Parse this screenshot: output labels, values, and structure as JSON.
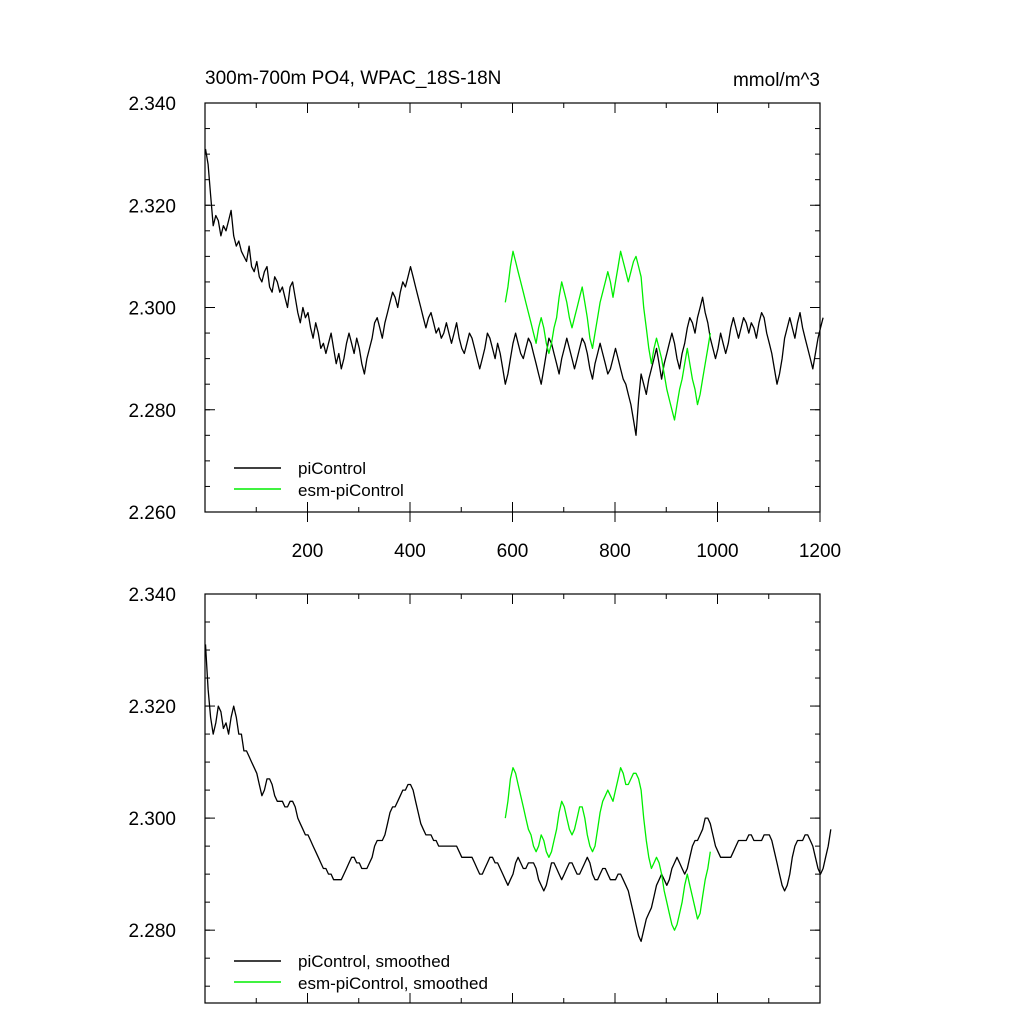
{
  "chart_data": [
    {
      "type": "line",
      "title": "300m-700m PO4, WPAC_18S-18N",
      "units": "mmol/m^3",
      "xlim": [
        0,
        1200
      ],
      "ylim": [
        2.26,
        2.34
      ],
      "x_ticks": [
        200,
        400,
        600,
        800,
        1000,
        1200
      ],
      "y_ticks": [
        2.26,
        2.28,
        2.3,
        2.32,
        2.34
      ],
      "y_tick_labels": [
        "2.260",
        "2.280",
        "2.300",
        "2.320",
        "2.340"
      ],
      "legend": "bottom-left",
      "series": [
        {
          "name": "piControl",
          "color": "#000000",
          "x_start": 1,
          "x_step": 5,
          "values": [
            2.331,
            2.328,
            2.322,
            2.316,
            2.318,
            2.317,
            2.314,
            2.316,
            2.315,
            2.317,
            2.319,
            2.314,
            2.312,
            2.313,
            2.311,
            2.31,
            2.309,
            2.312,
            2.308,
            2.307,
            2.309,
            2.306,
            2.305,
            2.307,
            2.308,
            2.304,
            2.303,
            2.306,
            2.305,
            2.303,
            2.304,
            2.302,
            2.3,
            2.304,
            2.305,
            2.302,
            2.299,
            2.297,
            2.3,
            2.298,
            2.299,
            2.296,
            2.294,
            2.297,
            2.295,
            2.292,
            2.293,
            2.291,
            2.293,
            2.295,
            2.292,
            2.289,
            2.291,
            2.288,
            2.29,
            2.293,
            2.295,
            2.293,
            2.291,
            2.294,
            2.292,
            2.289,
            2.287,
            2.29,
            2.292,
            2.294,
            2.297,
            2.298,
            2.296,
            2.294,
            2.297,
            2.299,
            2.301,
            2.303,
            2.302,
            2.3,
            2.303,
            2.305,
            2.304,
            2.306,
            2.308,
            2.306,
            2.304,
            2.302,
            2.3,
            2.298,
            2.296,
            2.298,
            2.299,
            2.297,
            2.295,
            2.296,
            2.294,
            2.295,
            2.297,
            2.295,
            2.293,
            2.295,
            2.297,
            2.294,
            2.292,
            2.291,
            2.293,
            2.295,
            2.294,
            2.292,
            2.29,
            2.288,
            2.29,
            2.292,
            2.295,
            2.294,
            2.292,
            2.29,
            2.293,
            2.291,
            2.288,
            2.285,
            2.287,
            2.29,
            2.293,
            2.295,
            2.293,
            2.291,
            2.29,
            2.292,
            2.294,
            2.293,
            2.291,
            2.289,
            2.287,
            2.285,
            2.288,
            2.291,
            2.294,
            2.293,
            2.291,
            2.289,
            2.287,
            2.29,
            2.292,
            2.294,
            2.292,
            2.29,
            2.288,
            2.29,
            2.292,
            2.294,
            2.293,
            2.291,
            2.288,
            2.286,
            2.289,
            2.291,
            2.293,
            2.291,
            2.289,
            2.287,
            2.288,
            2.29,
            2.292,
            2.29,
            2.288,
            2.286,
            2.285,
            2.283,
            2.281,
            2.278,
            2.275,
            2.282,
            2.287,
            2.285,
            2.283,
            2.286,
            2.288,
            2.29,
            2.292,
            2.289,
            2.286,
            2.289,
            2.291,
            2.293,
            2.295,
            2.293,
            2.29,
            2.288,
            2.291,
            2.293,
            2.296,
            2.298,
            2.297,
            2.295,
            2.298,
            2.3,
            2.302,
            2.299,
            2.297,
            2.294,
            2.292,
            2.29,
            2.292,
            2.295,
            2.293,
            2.291,
            2.293,
            2.296,
            2.298,
            2.296,
            2.294,
            2.296,
            2.298,
            2.297,
            2.295,
            2.297,
            2.296,
            2.294,
            2.297,
            2.299,
            2.298,
            2.295,
            2.293,
            2.291,
            2.288,
            2.285,
            2.287,
            2.29,
            2.294,
            2.296,
            2.298,
            2.296,
            2.294,
            2.297,
            2.299,
            2.296,
            2.294,
            2.292,
            2.29,
            2.288,
            2.291,
            2.294,
            2.296,
            2.298
          ]
        },
        {
          "name": "esm-piControl",
          "color": "#00ee00",
          "x_start": 586,
          "x_step": 5,
          "values": [
            2.301,
            2.304,
            2.308,
            2.311,
            2.309,
            2.307,
            2.305,
            2.303,
            2.301,
            2.299,
            2.297,
            2.295,
            2.293,
            2.296,
            2.298,
            2.296,
            2.293,
            2.291,
            2.293,
            2.296,
            2.298,
            2.302,
            2.305,
            2.303,
            2.301,
            2.298,
            2.296,
            2.298,
            2.3,
            2.302,
            2.304,
            2.301,
            2.298,
            2.294,
            2.292,
            2.295,
            2.298,
            2.301,
            2.303,
            2.305,
            2.307,
            2.305,
            2.302,
            2.305,
            2.308,
            2.311,
            2.309,
            2.307,
            2.305,
            2.307,
            2.309,
            2.31,
            2.308,
            2.306,
            2.3,
            2.296,
            2.292,
            2.289,
            2.292,
            2.294,
            2.292,
            2.29,
            2.287,
            2.284,
            2.282,
            2.28,
            2.278,
            2.281,
            2.284,
            2.286,
            2.289,
            2.292,
            2.289,
            2.286,
            2.284,
            2.281,
            2.283,
            2.286,
            2.289,
            2.292,
            2.295
          ]
        }
      ]
    },
    {
      "type": "line",
      "xlim": [
        0,
        1200
      ],
      "ylim": [
        2.267,
        2.34
      ],
      "y_ticks": [
        2.28,
        2.3,
        2.32,
        2.34
      ],
      "y_tick_labels": [
        "2.280",
        "2.300",
        "2.320",
        "2.340"
      ],
      "legend": "bottom-left",
      "series": [
        {
          "name": "piControl, smoothed",
          "color": "#000000",
          "x_start": 1,
          "x_step": 5,
          "values": [
            2.331,
            2.323,
            2.318,
            2.315,
            2.317,
            2.32,
            2.319,
            2.316,
            2.317,
            2.315,
            2.318,
            2.32,
            2.318,
            2.315,
            2.315,
            2.312,
            2.312,
            2.311,
            2.31,
            2.309,
            2.308,
            2.306,
            2.304,
            2.305,
            2.307,
            2.307,
            2.306,
            2.304,
            2.303,
            2.303,
            2.303,
            2.302,
            2.302,
            2.303,
            2.303,
            2.302,
            2.3,
            2.299,
            2.298,
            2.297,
            2.297,
            2.296,
            2.295,
            2.294,
            2.293,
            2.292,
            2.291,
            2.291,
            2.29,
            2.29,
            2.289,
            2.289,
            2.289,
            2.289,
            2.29,
            2.291,
            2.292,
            2.293,
            2.293,
            2.292,
            2.292,
            2.291,
            2.291,
            2.291,
            2.292,
            2.293,
            2.295,
            2.296,
            2.296,
            2.296,
            2.297,
            2.299,
            2.301,
            2.302,
            2.302,
            2.303,
            2.304,
            2.305,
            2.305,
            2.306,
            2.306,
            2.305,
            2.303,
            2.301,
            2.299,
            2.298,
            2.297,
            2.297,
            2.297,
            2.296,
            2.296,
            2.295,
            2.295,
            2.295,
            2.295,
            2.295,
            2.295,
            2.295,
            2.295,
            2.294,
            2.293,
            2.293,
            2.293,
            2.293,
            2.293,
            2.292,
            2.291,
            2.29,
            2.29,
            2.291,
            2.292,
            2.293,
            2.293,
            2.292,
            2.292,
            2.291,
            2.29,
            2.289,
            2.288,
            2.289,
            2.29,
            2.292,
            2.293,
            2.292,
            2.291,
            2.291,
            2.292,
            2.292,
            2.292,
            2.291,
            2.289,
            2.288,
            2.287,
            2.288,
            2.29,
            2.292,
            2.292,
            2.291,
            2.29,
            2.289,
            2.29,
            2.291,
            2.292,
            2.292,
            2.291,
            2.29,
            2.29,
            2.291,
            2.292,
            2.293,
            2.292,
            2.29,
            2.289,
            2.289,
            2.29,
            2.291,
            2.291,
            2.29,
            2.289,
            2.289,
            2.289,
            2.29,
            2.29,
            2.289,
            2.288,
            2.287,
            2.285,
            2.283,
            2.281,
            2.279,
            2.278,
            2.28,
            2.282,
            2.283,
            2.284,
            2.286,
            2.288,
            2.289,
            2.29,
            2.289,
            2.288,
            2.289,
            2.291,
            2.292,
            2.293,
            2.292,
            2.291,
            2.29,
            2.291,
            2.293,
            2.295,
            2.296,
            2.296,
            2.297,
            2.298,
            2.3,
            2.3,
            2.299,
            2.297,
            2.295,
            2.294,
            2.293,
            2.293,
            2.293,
            2.293,
            2.293,
            2.294,
            2.295,
            2.296,
            2.296,
            2.296,
            2.296,
            2.297,
            2.297,
            2.296,
            2.296,
            2.296,
            2.296,
            2.297,
            2.297,
            2.297,
            2.296,
            2.294,
            2.292,
            2.29,
            2.288,
            2.287,
            2.288,
            2.29,
            2.293,
            2.295,
            2.296,
            2.296,
            2.296,
            2.297,
            2.297,
            2.296,
            2.295,
            2.293,
            2.291,
            2.29,
            2.291,
            2.293,
            2.295,
            2.298
          ]
        },
        {
          "name": "esm-piControl, smoothed",
          "color": "#00ee00",
          "x_start": 586,
          "x_step": 5,
          "values": [
            2.3,
            2.303,
            2.307,
            2.309,
            2.308,
            2.306,
            2.304,
            2.302,
            2.3,
            2.298,
            2.297,
            2.295,
            2.294,
            2.295,
            2.297,
            2.296,
            2.294,
            2.293,
            2.294,
            2.296,
            2.298,
            2.301,
            2.303,
            2.302,
            2.3,
            2.298,
            2.297,
            2.298,
            2.3,
            2.302,
            2.302,
            2.3,
            2.297,
            2.295,
            2.294,
            2.295,
            2.298,
            2.301,
            2.303,
            2.304,
            2.305,
            2.304,
            2.303,
            2.305,
            2.307,
            2.309,
            2.308,
            2.306,
            2.306,
            2.307,
            2.308,
            2.308,
            2.307,
            2.305,
            2.3,
            2.296,
            2.293,
            2.291,
            2.292,
            2.293,
            2.292,
            2.29,
            2.287,
            2.285,
            2.283,
            2.281,
            2.28,
            2.281,
            2.283,
            2.285,
            2.288,
            2.29,
            2.288,
            2.286,
            2.284,
            2.282,
            2.283,
            2.286,
            2.289,
            2.291,
            2.294
          ]
        }
      ]
    }
  ]
}
